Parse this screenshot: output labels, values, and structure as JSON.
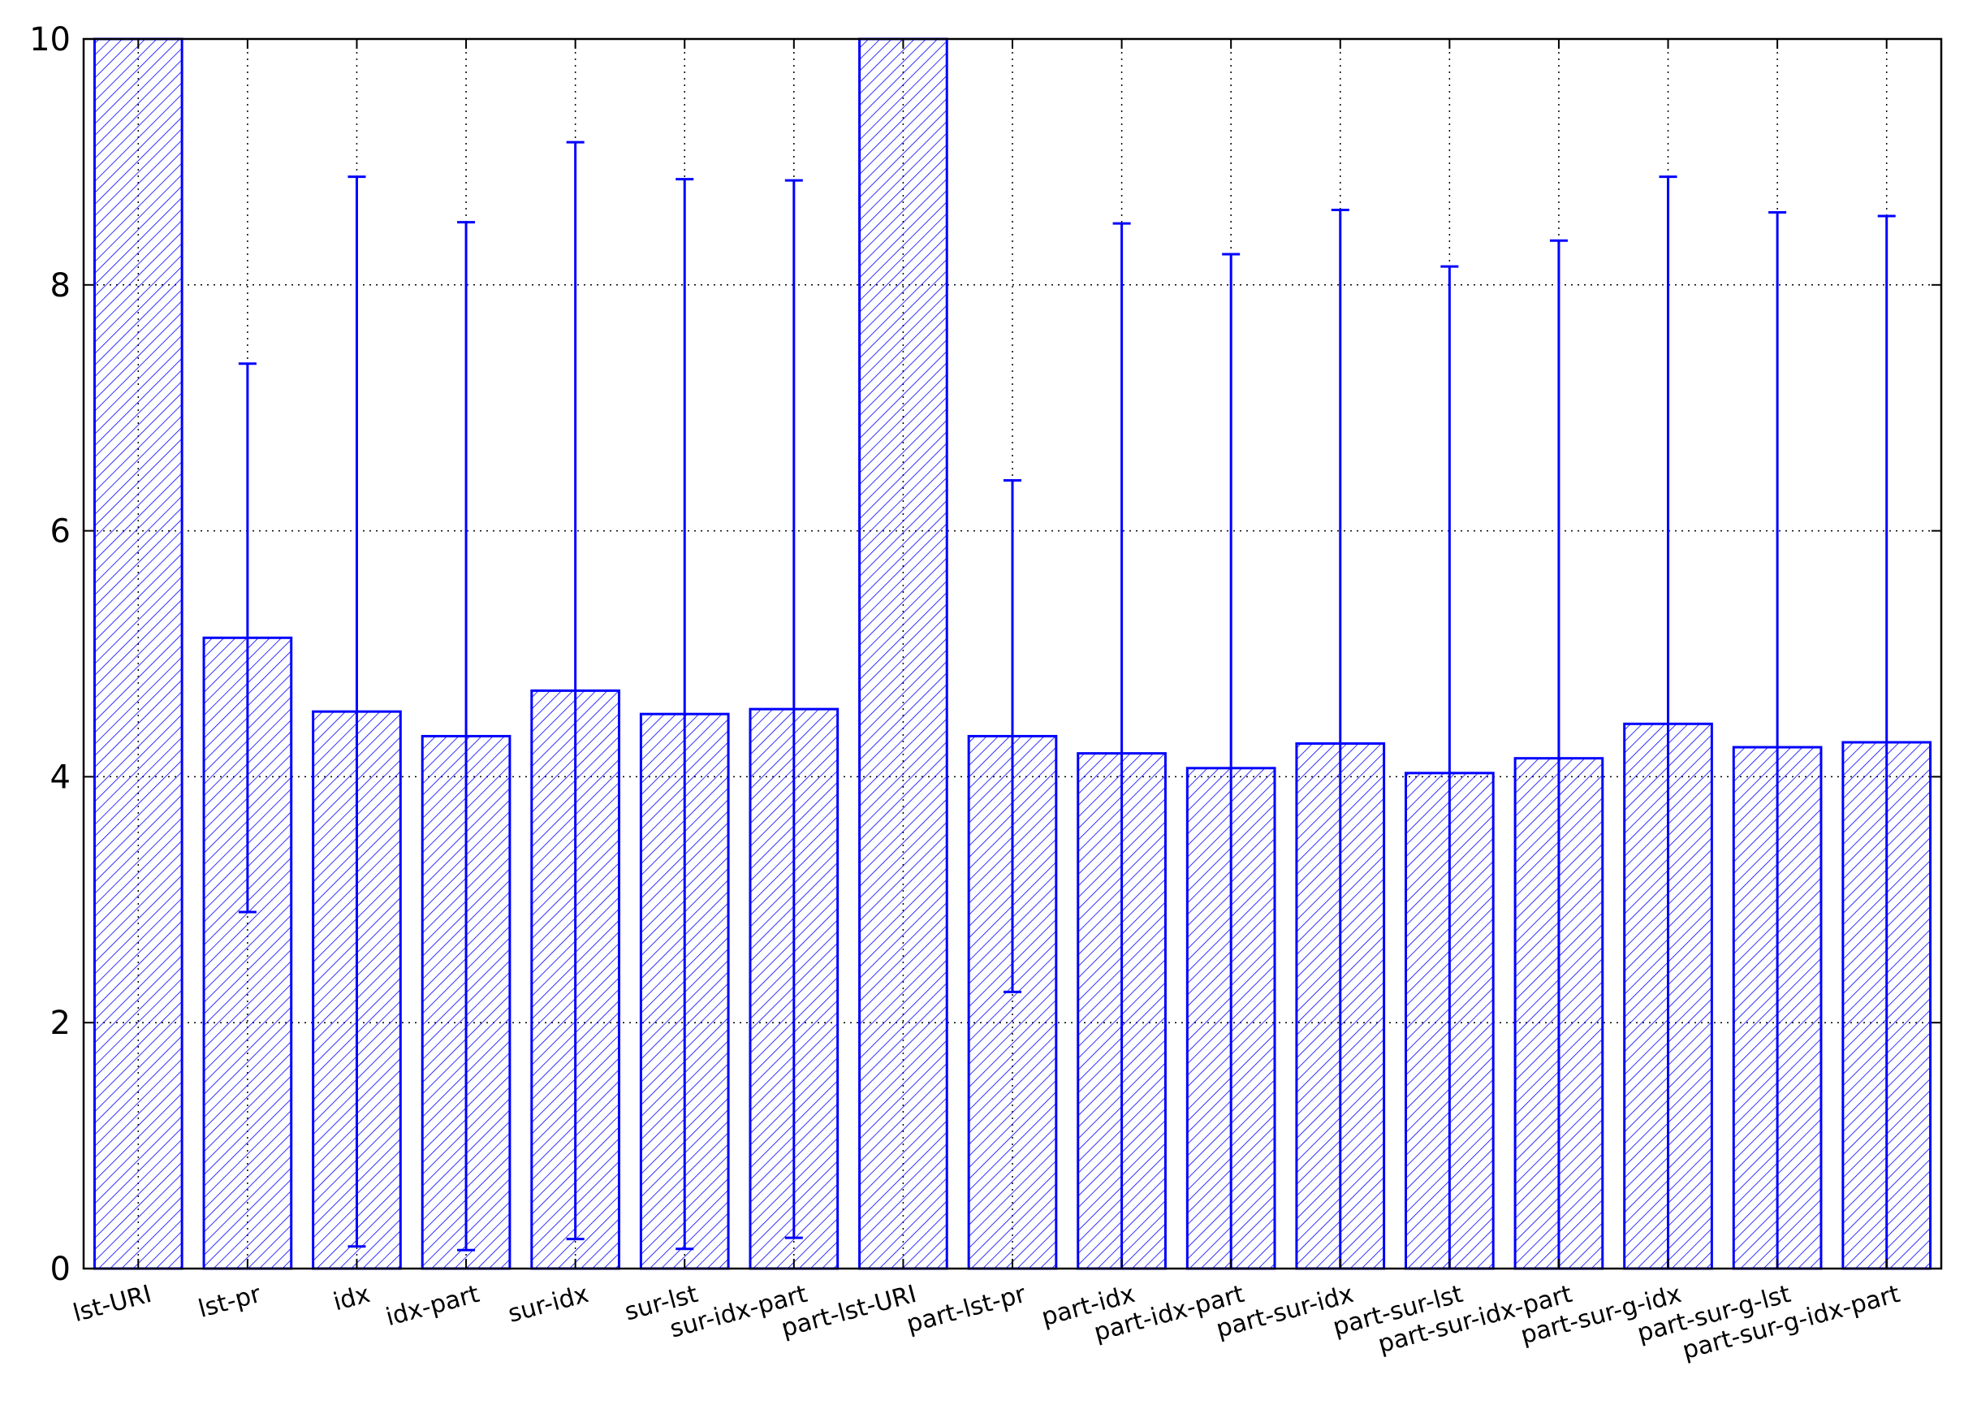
{
  "chart_data": {
    "type": "bar",
    "title": "",
    "xlabel": "",
    "ylabel": "",
    "ylim": [
      0,
      10
    ],
    "yticks": [
      "0",
      "2",
      "4",
      "6",
      "8",
      "10"
    ],
    "grid": true,
    "categories": [
      "lst-URI",
      "lst-pr",
      "idx",
      "idx-part",
      "sur-idx",
      "sur-lst",
      "sur-idx-part",
      "part-lst-URI",
      "part-lst-pr",
      "part-idx",
      "part-idx-part",
      "part-sur-idx",
      "part-sur-lst",
      "part-sur-idx-part",
      "part-sur-g-idx",
      "part-sur-g-lst",
      "part-sur-g-idx-part"
    ],
    "values": [
      10,
      5.13,
      4.53,
      4.33,
      4.7,
      4.51,
      4.55,
      10,
      4.33,
      4.19,
      4.07,
      4.27,
      4.03,
      4.15,
      4.43,
      4.24,
      4.28
    ],
    "errors": [
      null,
      2.23,
      4.35,
      4.18,
      4.46,
      4.35,
      4.3,
      null,
      2.08,
      4.31,
      4.18,
      4.34,
      4.12,
      4.21,
      4.45,
      4.35,
      4.28
    ],
    "colors": {
      "bar_edge": "#0000ff",
      "hatch": "#0000ff",
      "grid": "#000000"
    }
  }
}
